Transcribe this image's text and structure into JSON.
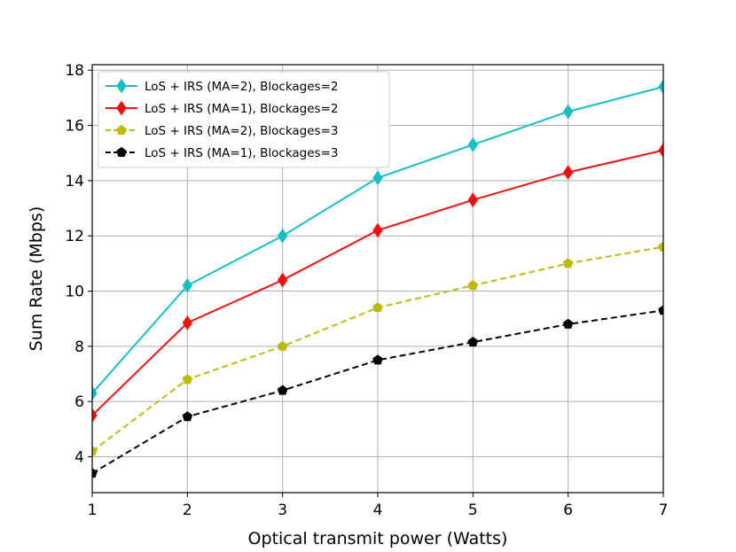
{
  "chart_data": {
    "type": "line",
    "title": "",
    "xlabel": "Optical transmit power (Watts)",
    "ylabel": "Sum Rate (Mbps)",
    "x": [
      1,
      2,
      3,
      4,
      5,
      6,
      7
    ],
    "xlim": [
      1,
      7
    ],
    "ylim": [
      2.7,
      18.2
    ],
    "xticks": [
      1,
      2,
      3,
      4,
      5,
      6,
      7
    ],
    "yticks": [
      4,
      6,
      8,
      10,
      12,
      14,
      16,
      18
    ],
    "grid": true,
    "legend_position": "top-left",
    "series": [
      {
        "name": "LoS + IRS (MA=2), Blockages=2",
        "values": [
          6.3,
          10.2,
          12.0,
          14.1,
          15.3,
          16.5,
          17.4
        ],
        "color": "#17bfc3",
        "dashed": false,
        "marker": "diamond"
      },
      {
        "name": "LoS + IRS (MA=1), Blockages=2",
        "values": [
          5.5,
          8.85,
          10.4,
          12.2,
          13.3,
          14.3,
          15.1
        ],
        "color": "#ee1111",
        "dashed": false,
        "marker": "diamond"
      },
      {
        "name": "LoS + IRS (MA=2), Blockages=3",
        "values": [
          4.2,
          6.8,
          8.0,
          9.4,
          10.2,
          11.0,
          11.6
        ],
        "color": "#bcbc10",
        "dashed": true,
        "marker": "pentagon"
      },
      {
        "name": "LoS + IRS (MA=1), Blockages=3",
        "values": [
          3.4,
          5.45,
          6.4,
          7.5,
          8.15,
          8.8,
          9.3
        ],
        "color": "#000000",
        "dashed": true,
        "marker": "pentagon"
      }
    ]
  }
}
